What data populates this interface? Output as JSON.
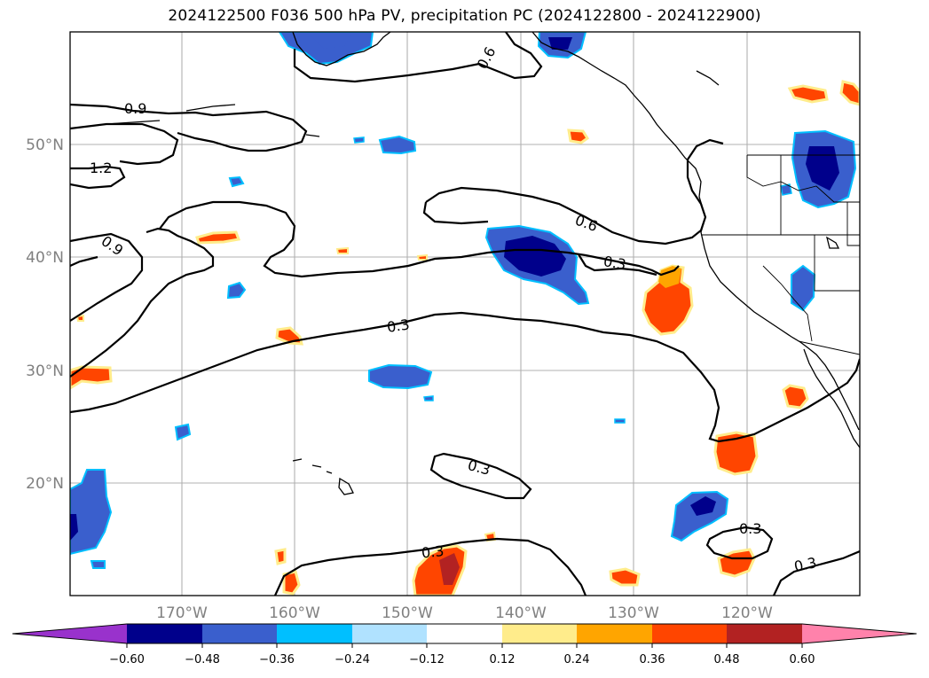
{
  "title": "2024122500 F036 500 hPa PV, precipitation PC (2024122800 - 2024122900)",
  "map": {
    "lat_labels": [
      "50°N",
      "40°N",
      "30°N",
      "20°N"
    ],
    "lon_labels": [
      "170°W",
      "160°W",
      "150°W",
      "140°W",
      "130°W",
      "120°W"
    ],
    "contour_labels": [
      "0.9",
      "1.2",
      "0.9",
      "0.6",
      "0.6",
      "0.3",
      "0.3",
      "0.3",
      "0.3",
      "0.3",
      "0.3"
    ]
  },
  "colorbar": {
    "colors": [
      "#9932cc",
      "#00008b",
      "#3a5fcd",
      "#00bfff",
      "#b0e2ff",
      "#ffffff",
      "#ffec8b",
      "#ffa500",
      "#ff4500",
      "#b22222",
      "#ff82ab"
    ],
    "tick_labels": [
      "−0.60",
      "−0.48",
      "−0.36",
      "−0.24",
      "−0.12",
      "0.12",
      "0.24",
      "0.36",
      "0.48",
      "0.60"
    ]
  }
}
